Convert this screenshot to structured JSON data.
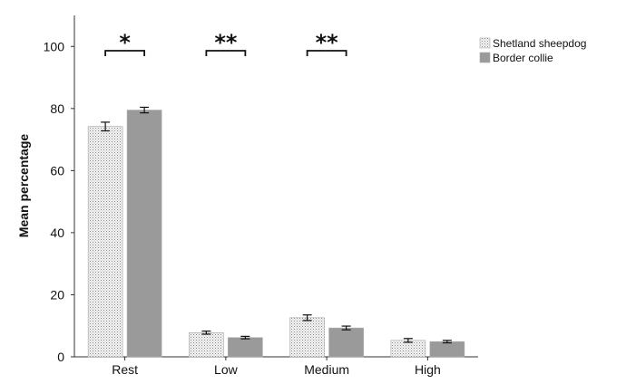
{
  "chart_data": {
    "type": "bar",
    "categories": [
      "Rest",
      "Low",
      "Medium",
      "High"
    ],
    "series": [
      {
        "name": "Shetland sheepdog",
        "values": [
          74.2,
          7.8,
          12.6,
          5.3
        ],
        "errors": [
          1.4,
          0.5,
          0.9,
          0.6
        ],
        "color": "#f0f0f0",
        "pattern": "dotted"
      },
      {
        "name": "Border collie",
        "values": [
          79.5,
          6.2,
          9.3,
          4.9
        ],
        "errors": [
          0.9,
          0.4,
          0.6,
          0.4
        ],
        "color": "#9a9a9a",
        "pattern": "solid"
      }
    ],
    "significance": [
      "*",
      "**",
      "**",
      ""
    ],
    "title": "",
    "xlabel": "",
    "ylabel": "Mean percentage",
    "yticks": [
      "0",
      "20",
      "40",
      "60",
      "80",
      "100"
    ],
    "ylim": [
      0,
      110
    ],
    "legend_position": "top-right",
    "grid": false
  }
}
